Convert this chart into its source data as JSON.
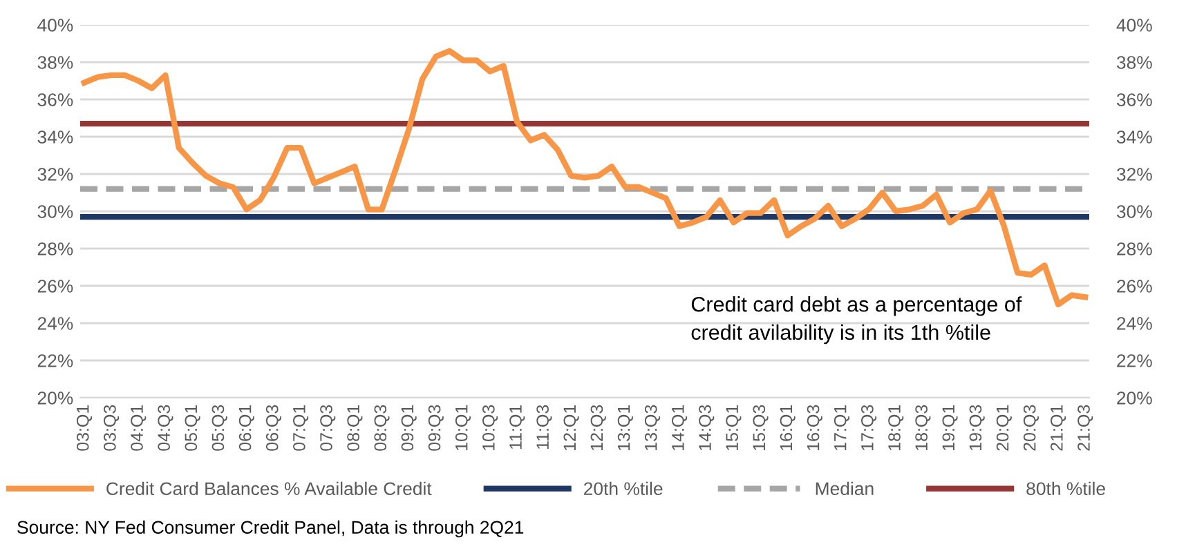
{
  "chart_data": {
    "type": "line",
    "categories": [
      "03:Q1",
      null,
      "03:Q3",
      null,
      "04:Q1",
      null,
      "04:Q3",
      null,
      "05:Q1",
      null,
      "05:Q3",
      null,
      "06:Q1",
      null,
      "06:Q3",
      null,
      "07:Q1",
      null,
      "07:Q3",
      null,
      "08:Q1",
      null,
      "08:Q3",
      null,
      "09:Q1",
      null,
      "09:Q3",
      null,
      "10:Q1",
      null,
      "10:Q3",
      null,
      "11:Q1",
      null,
      "11:Q3",
      null,
      "12:Q1",
      null,
      "12:Q3",
      null,
      "13:Q1",
      null,
      "13:Q3",
      null,
      "14:Q1",
      null,
      "14:Q3",
      null,
      "15:Q1",
      null,
      "15:Q3",
      null,
      "16:Q1",
      null,
      "16:Q3",
      null,
      "17:Q1",
      null,
      "17:Q3",
      null,
      "18:Q1",
      null,
      "18:Q3",
      null,
      "19:Q1",
      null,
      "19:Q3",
      null,
      "20:Q1",
      null,
      "20:Q3",
      null,
      "21:Q1",
      null,
      "21:Q3"
    ],
    "series": [
      {
        "name": "Credit Card Balances % Available Credit",
        "color": "#f79646",
        "values": [
          36.9,
          37.2,
          37.3,
          37.3,
          37.0,
          36.6,
          37.3,
          33.4,
          32.6,
          31.9,
          31.5,
          31.3,
          30.1,
          30.6,
          31.8,
          33.4,
          33.4,
          31.5,
          31.8,
          32.1,
          32.4,
          30.1,
          30.1,
          32.2,
          34.4,
          37.1,
          38.3,
          38.6,
          38.1,
          38.1,
          37.5,
          37.8,
          34.8,
          33.8,
          34.1,
          33.3,
          31.9,
          31.8,
          31.9,
          32.4,
          31.3,
          31.3,
          31.0,
          30.7,
          29.2,
          29.4,
          29.7,
          30.6,
          29.4,
          29.9,
          29.9,
          30.6,
          28.7,
          29.2,
          29.6,
          30.3,
          29.2,
          29.6,
          30.1,
          31.0,
          30.0,
          30.1,
          30.3,
          30.9,
          29.4,
          29.9,
          30.1,
          31.1,
          29.2,
          26.7,
          26.6,
          27.1,
          25.0,
          25.5,
          25.4
        ]
      }
    ],
    "ref_lines": [
      {
        "axis": "y",
        "value": 29.7,
        "label": "20th %tile",
        "color": "#1f3864",
        "line_style": "solid"
      },
      {
        "axis": "y",
        "value": 31.2,
        "label": "Median",
        "color": "#a6a6a6",
        "line_style": "dashed"
      },
      {
        "axis": "y",
        "value": 34.7,
        "label": "80th %tile",
        "color": "#953735",
        "line_style": "solid"
      }
    ],
    "ylim": [
      20,
      40
    ],
    "yticks": [
      {
        "value": 20,
        "label": "20%"
      },
      {
        "value": 22,
        "label": "22%"
      },
      {
        "value": 24,
        "label": "24%"
      },
      {
        "value": 26,
        "label": "26%"
      },
      {
        "value": 28,
        "label": "28%"
      },
      {
        "value": 30,
        "label": "30%"
      },
      {
        "value": 32,
        "label": "32%"
      },
      {
        "value": 34,
        "label": "34%"
      },
      {
        "value": 36,
        "label": "36%"
      },
      {
        "value": 38,
        "label": "38%"
      },
      {
        "value": 40,
        "label": "40%"
      }
    ],
    "y2lim": [
      20,
      40
    ],
    "y2ticks": [
      {
        "value": 20,
        "label": "20%"
      },
      {
        "value": 22,
        "label": "22%"
      },
      {
        "value": 24,
        "label": "24%"
      },
      {
        "value": 26,
        "label": "26%"
      },
      {
        "value": 28,
        "label": "28%"
      },
      {
        "value": 30,
        "label": "30%"
      },
      {
        "value": 32,
        "label": "32%"
      },
      {
        "value": 34,
        "label": "34%"
      },
      {
        "value": 36,
        "label": "36%"
      },
      {
        "value": 38,
        "label": "38%"
      },
      {
        "value": 40,
        "label": "40%"
      }
    ],
    "grid": "y",
    "legend": "bottom",
    "marker": "none",
    "line_style": "solid",
    "annotations": [
      "Credit card debt as a percentage of\ncredit avilability is in its 1th %tile",
      "Source: NY Fed Consumer Credit Panel, Data is through 2Q21"
    ]
  }
}
